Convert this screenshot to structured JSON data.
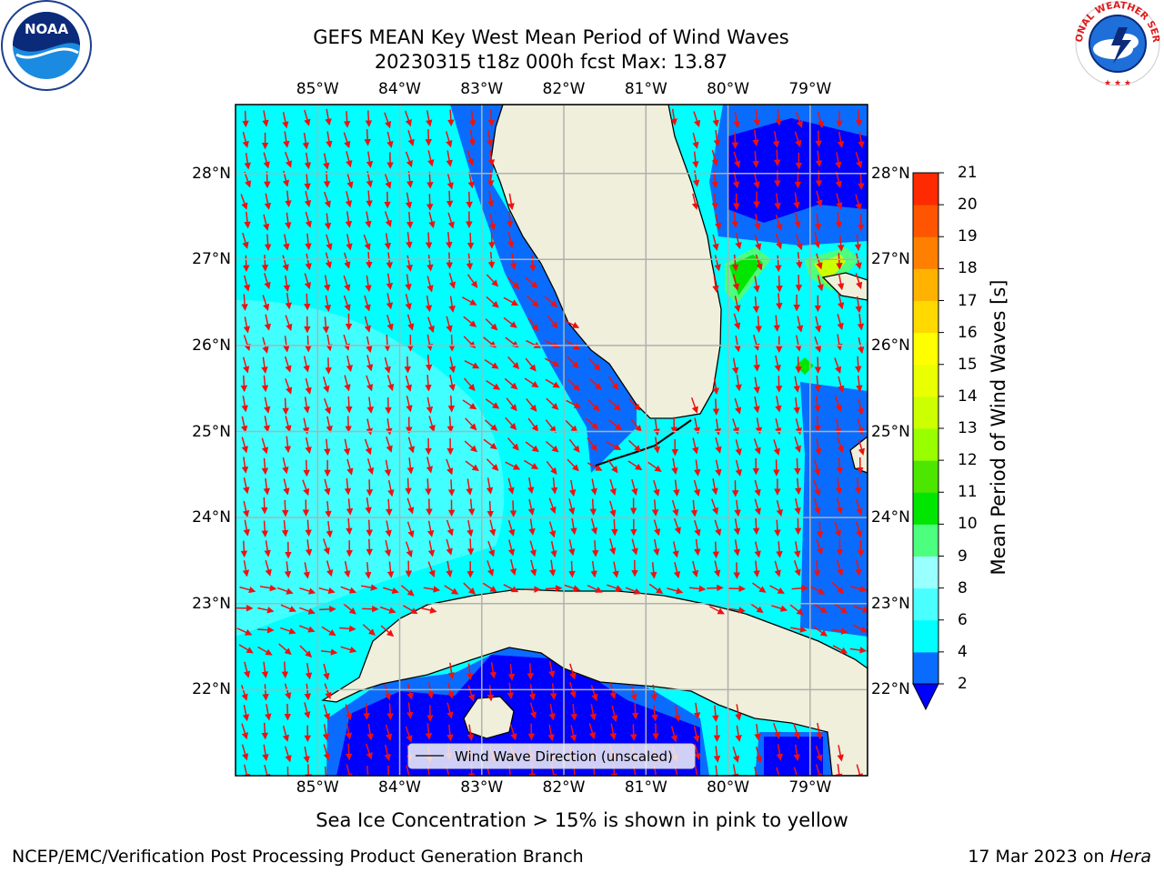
{
  "title": {
    "line1": "GEFS MEAN Key West Mean Period of Wind Waves",
    "line2": "20230315 t18z 000h fcst   Max: 13.87"
  },
  "map": {
    "lon_range": [
      -86.0,
      -78.3
    ],
    "lat_range": [
      21.0,
      28.8
    ],
    "lon_ticks": [
      "85°W",
      "84°W",
      "83°W",
      "82°W",
      "81°W",
      "80°W",
      "79°W"
    ],
    "lat_ticks": [
      "22°N",
      "23°N",
      "24°N",
      "25°N",
      "26°N",
      "27°N",
      "28°N"
    ],
    "grid": true,
    "arrow_color": "#ee1111",
    "land_color": "#efefdb",
    "legend_label": "Wind Wave Direction (unscaled)",
    "legend_position": "bottom-center"
  },
  "colorbar": {
    "label": "Mean Period of Wind Waves [s]",
    "ticks": [
      "2",
      "4",
      "6",
      "8",
      "9",
      "10",
      "11",
      "12",
      "13",
      "14",
      "15",
      "16",
      "17",
      "18",
      "19",
      "20",
      "21"
    ],
    "colors": [
      "#0a6cff",
      "#00ffff",
      "#49ffff",
      "#99ffff",
      "#4cff7f",
      "#00e600",
      "#4ce600",
      "#99ff00",
      "#ccff00",
      "#eaff00",
      "#ffff00",
      "#ffd900",
      "#ffb300",
      "#ff8000",
      "#ff5500",
      "#ff2a00"
    ],
    "under_color": "#0000ff"
  },
  "sea_ice_note": "Sea Ice Concentration > 15% is shown in pink to yellow",
  "footer_left": "NCEP/EMC/Verification Post Processing Product Generation Branch",
  "footer_right": {
    "date": "17 Mar 2023 on",
    "machine": "Hera"
  },
  "logos": {
    "left": "NOAA",
    "right": "NATIONAL WEATHER SERVICE"
  }
}
